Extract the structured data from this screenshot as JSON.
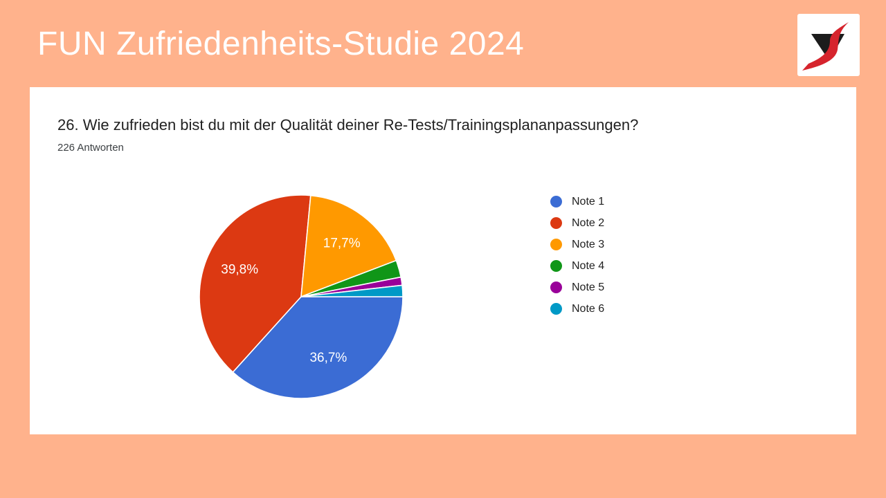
{
  "page": {
    "background_color": "#FFB28C",
    "title": "FUN Zufriedenheits-Studie 2024",
    "title_color": "#FFFFFF"
  },
  "logo": {
    "description": "stylized letter S: red swoosh over black inverted triangle",
    "box_color": "#FFFFFF",
    "triangle_color": "#1C1C1C",
    "swoosh_color": "#D6242D"
  },
  "card": {
    "background": "#FFFFFF",
    "question": "26. Wie zufrieden bist du mit der Qualität deiner Re-Tests/Trainingsplananpassungen?",
    "responses_label": "226 Antworten"
  },
  "chart_data": {
    "type": "pie",
    "title": "26. Wie zufrieden bist du mit der Qualität deiner Re-Tests/Trainingsplananpassungen?",
    "responses_count": 226,
    "start_angle_deg": 90,
    "direction": "clockwise",
    "legend_position": "right",
    "slice_border_color": "#FFFFFF",
    "label_color": "#FFFFFF",
    "min_label_percent": 5,
    "slices": [
      {
        "label": "Note 1",
        "percent": 36.7,
        "display_percent": "36,7%",
        "color": "#3B6CD4",
        "shows_label": true
      },
      {
        "label": "Note 2",
        "percent": 39.8,
        "display_percent": "39,8%",
        "color": "#DC3912",
        "shows_label": true
      },
      {
        "label": "Note 3",
        "percent": 17.7,
        "display_percent": "17,7%",
        "color": "#FF9900",
        "shows_label": true
      },
      {
        "label": "Note 4",
        "percent": 2.7,
        "display_percent": "2,7%",
        "color": "#109618",
        "shows_label": false
      },
      {
        "label": "Note 5",
        "percent": 1.3,
        "display_percent": "1,3%",
        "color": "#990099",
        "shows_label": false
      },
      {
        "label": "Note 6",
        "percent": 1.8,
        "display_percent": "1,8%",
        "color": "#0099C6",
        "shows_label": false
      }
    ]
  }
}
